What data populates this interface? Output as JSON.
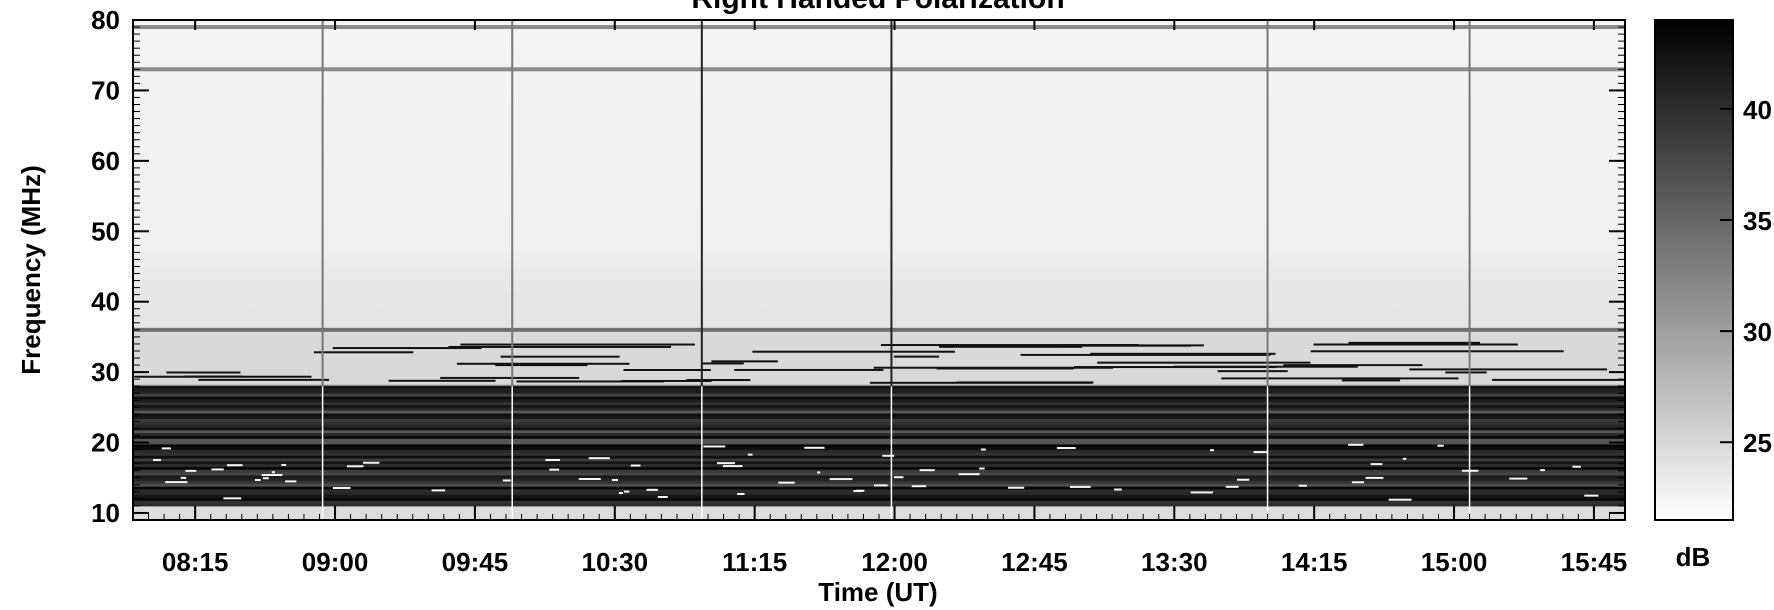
{
  "chart_data": {
    "type": "heatmap",
    "title": "Right Handed Polarization",
    "xlabel": "Time (UT)",
    "ylabel": "Frequency (MHz)",
    "x_ticks": [
      "08:15",
      "09:00",
      "09:45",
      "10:30",
      "11:15",
      "12:00",
      "12:45",
      "13:30",
      "14:15",
      "15:00",
      "15:45"
    ],
    "x_tick_minutes": [
      495,
      540,
      585,
      630,
      675,
      720,
      765,
      810,
      855,
      900,
      945
    ],
    "xlim_minutes": [
      475,
      955
    ],
    "y_ticks": [
      10,
      20,
      30,
      40,
      50,
      60,
      70,
      80
    ],
    "ylim": [
      9,
      80
    ],
    "colorbar": {
      "label": "dB",
      "ticks": [
        25,
        30,
        35,
        40
      ],
      "range": [
        21.5,
        44
      ],
      "colormap": "gray_r"
    },
    "colors": {
      "low": "#ffffff",
      "high": "#000000"
    },
    "features": {
      "horizontal_interference_MHz": [
        79,
        73,
        36
      ],
      "dark_band_MHz": [
        11,
        28
      ],
      "vertical_lines_minutes": [
        536,
        597,
        658,
        719,
        840,
        905
      ]
    }
  }
}
